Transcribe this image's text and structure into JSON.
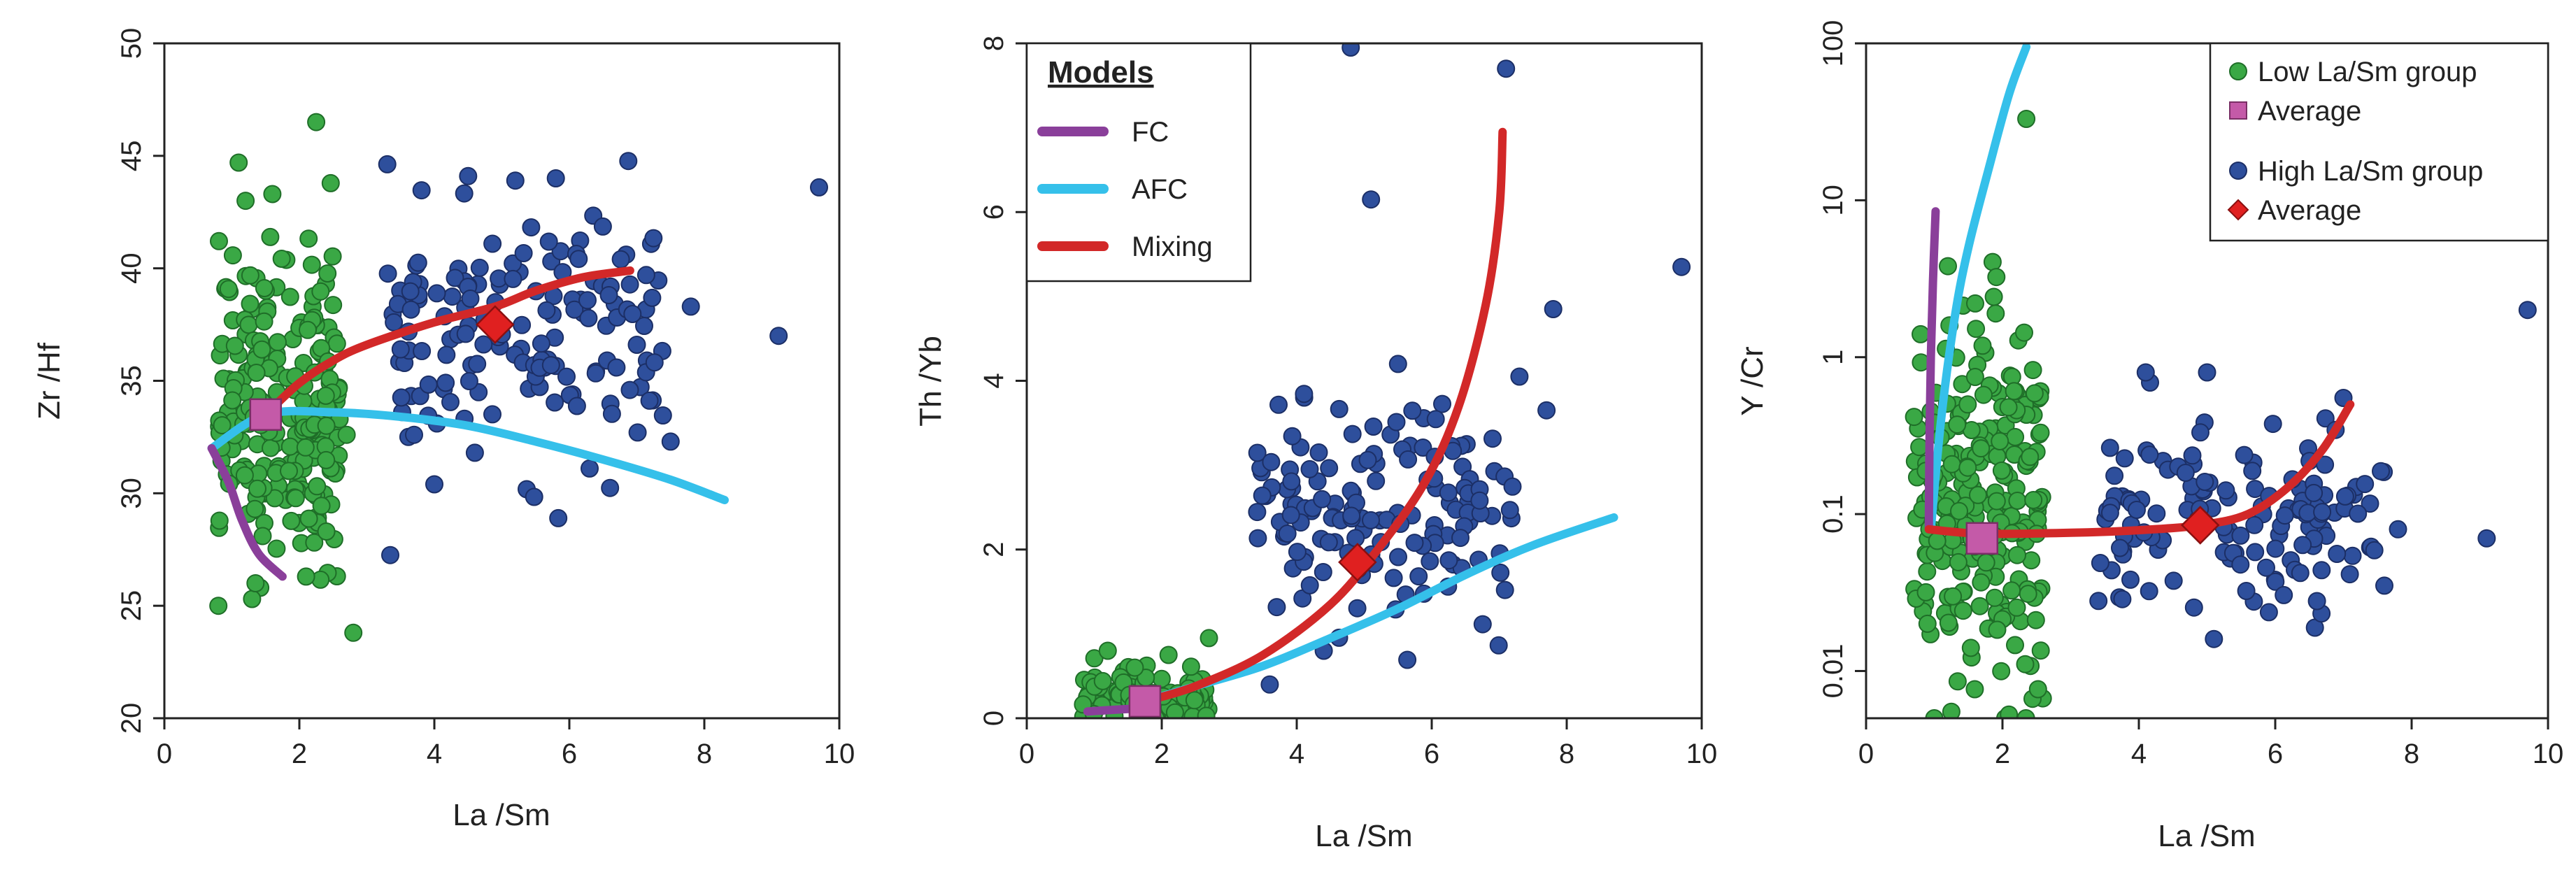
{
  "colors": {
    "low": "#3aa845",
    "low_edge": "#1f6e28",
    "high": "#2e4f9c",
    "high_edge": "#1c2f66",
    "avg_low": "#c45aa8",
    "avg_high": "#e02020",
    "fc": "#8a3f9a",
    "afc": "#35c0ea",
    "mix": "#d22828"
  },
  "chart_data": [
    {
      "type": "scatter",
      "id": "zrhf",
      "xlabel": "La /Sm",
      "ylabel": "Zr /Hf",
      "xlim": [
        0,
        10
      ],
      "ylim": [
        20,
        50
      ],
      "yscale": "linear",
      "xticks": [
        "0",
        "2",
        "4",
        "6",
        "8",
        "10"
      ],
      "xtick_values": [
        0,
        2,
        4,
        6,
        8,
        10
      ],
      "yticks": [
        "20",
        "25",
        "30",
        "35",
        "40",
        "45",
        "50"
      ],
      "ytick_values": [
        20,
        25,
        30,
        35,
        40,
        45,
        50
      ],
      "low_cluster": {
        "x_range": [
          0.8,
          2.6
        ],
        "y_center": 34,
        "y_spread": 3.4,
        "n": 230
      },
      "high_cluster": {
        "x_range": [
          3.3,
          7.5
        ],
        "y_center": 37,
        "y_spread": 2.8,
        "n": 150
      },
      "low_points": [
        [
          1.1,
          44.7
        ],
        [
          1.6,
          43.3
        ],
        [
          2.25,
          46.5
        ],
        [
          0.8,
          25.0
        ],
        [
          1.3,
          25.3
        ],
        [
          1.35,
          26.0
        ],
        [
          2.1,
          26.3
        ],
        [
          2.8,
          23.8
        ],
        [
          2.4,
          33.0
        ],
        [
          2.7,
          32.6
        ],
        [
          2.4,
          28.3
        ]
      ],
      "high_points": [
        [
          9.7,
          43.6
        ],
        [
          9.1,
          37.0
        ],
        [
          7.8,
          38.3
        ],
        [
          7.5,
          32.3
        ],
        [
          6.3,
          31.1
        ],
        [
          4.0,
          30.4
        ],
        [
          4.6,
          31.8
        ],
        [
          5.8,
          44.0
        ],
        [
          5.2,
          43.9
        ],
        [
          4.5,
          44.1
        ],
        [
          3.5,
          36.4
        ],
        [
          3.4,
          37.6
        ],
        [
          7.0,
          36.6
        ],
        [
          3.7,
          32.6
        ]
      ],
      "avg_low": [
        1.5,
        33.5
      ],
      "avg_high": [
        4.9,
        37.5
      ],
      "lines": {
        "fc": [
          [
            0.7,
            32.0
          ],
          [
            0.95,
            30.5
          ],
          [
            1.15,
            28.8
          ],
          [
            1.4,
            27.3
          ],
          [
            1.75,
            26.3
          ]
        ],
        "afc": [
          [
            0.7,
            32.0
          ],
          [
            1.5,
            33.5
          ],
          [
            2.5,
            33.6
          ],
          [
            3.5,
            33.4
          ],
          [
            4.5,
            33.0
          ],
          [
            5.5,
            32.3
          ],
          [
            6.5,
            31.5
          ],
          [
            7.5,
            30.6
          ],
          [
            8.3,
            29.7
          ]
        ],
        "mix": [
          [
            1.5,
            33.5
          ],
          [
            2.0,
            34.9
          ],
          [
            2.5,
            35.9
          ],
          [
            3.0,
            36.6
          ],
          [
            4.0,
            37.6
          ],
          [
            4.9,
            38.3
          ],
          [
            5.5,
            39.0
          ],
          [
            6.2,
            39.6
          ],
          [
            6.9,
            39.9
          ]
        ]
      }
    },
    {
      "type": "scatter",
      "id": "thyb",
      "xlabel": "La /Sm",
      "ylabel": "Th /Yb",
      "xlim": [
        0,
        10
      ],
      "ylim": [
        0,
        8
      ],
      "yscale": "linear",
      "xticks": [
        "0",
        "2",
        "4",
        "6",
        "8",
        "10"
      ],
      "xtick_values": [
        0,
        2,
        4,
        6,
        8,
        10
      ],
      "yticks": [
        "0",
        "2",
        "4",
        "6",
        "8"
      ],
      "ytick_values": [
        0,
        2,
        4,
        6,
        8
      ],
      "low_cluster": {
        "x_range": [
          0.8,
          2.7
        ],
        "y_center": 0.25,
        "y_spread": 0.15,
        "n": 110
      },
      "high_cluster": {
        "x_range": [
          3.4,
          7.2
        ],
        "y_center": 2.4,
        "y_spread": 0.6,
        "n": 150
      },
      "low_points": [
        [
          1.2,
          0.8
        ],
        [
          2.1,
          0.75
        ],
        [
          2.7,
          0.95
        ],
        [
          1.6,
          0.6
        ]
      ],
      "high_points": [
        [
          4.8,
          7.95
        ],
        [
          7.1,
          7.7
        ],
        [
          5.1,
          6.15
        ],
        [
          7.8,
          4.85
        ],
        [
          9.7,
          5.35
        ],
        [
          7.7,
          3.65
        ],
        [
          7.3,
          4.05
        ],
        [
          5.5,
          4.2
        ],
        [
          3.6,
          0.4
        ],
        [
          4.4,
          0.8
        ]
      ],
      "avg_low": [
        1.75,
        0.2
      ],
      "avg_high": [
        4.9,
        1.85
      ],
      "lines": {
        "fc": [
          [
            0.9,
            0.08
          ],
          [
            1.3,
            0.1
          ],
          [
            1.75,
            0.12
          ]
        ],
        "afc": [
          [
            1.75,
            0.2
          ],
          [
            2.5,
            0.38
          ],
          [
            3.5,
            0.62
          ],
          [
            4.5,
            0.95
          ],
          [
            5.5,
            1.3
          ],
          [
            6.5,
            1.7
          ],
          [
            7.5,
            2.05
          ],
          [
            8.7,
            2.38
          ]
        ],
        "mix": [
          [
            1.75,
            0.2
          ],
          [
            2.5,
            0.38
          ],
          [
            3.5,
            0.75
          ],
          [
            4.5,
            1.35
          ],
          [
            5.2,
            2.0
          ],
          [
            5.9,
            2.8
          ],
          [
            6.4,
            3.7
          ],
          [
            6.8,
            4.9
          ],
          [
            7.0,
            6.0
          ],
          [
            7.05,
            6.95
          ]
        ]
      },
      "legend": {
        "title": "Models",
        "items": [
          {
            "label": "FC",
            "key": "fc"
          },
          {
            "label": "AFC",
            "key": "afc"
          },
          {
            "label": "Mixing",
            "key": "mix"
          }
        ]
      }
    },
    {
      "type": "scatter",
      "id": "ycr",
      "xlabel": "La /Sm",
      "ylabel": "Y /Cr",
      "xlim": [
        0,
        10
      ],
      "ylim": [
        0.005,
        100
      ],
      "yscale": "log",
      "xticks": [
        "0",
        "2",
        "4",
        "6",
        "8",
        "10"
      ],
      "xtick_values": [
        0,
        2,
        4,
        6,
        8,
        10
      ],
      "yticks": [
        "0.01",
        "0.1",
        "1",
        "10",
        "100"
      ],
      "ytick_values": [
        0.01,
        0.1,
        1,
        10,
        100
      ],
      "low_cluster": {
        "x_range": [
          0.7,
          2.6
        ],
        "y_center": 0.12,
        "y_spread_log": 0.6,
        "n": 240
      },
      "high_cluster": {
        "x_range": [
          3.4,
          7.6
        ],
        "y_center": 0.09,
        "y_spread_log": 0.28,
        "n": 140
      },
      "low_points": [
        [
          2.35,
          33.0
        ],
        [
          1.2,
          3.8
        ],
        [
          0.8,
          1.4
        ],
        [
          1.6,
          2.2
        ],
        [
          1.9,
          1.9
        ],
        [
          1.0,
          0.005
        ],
        [
          1.25,
          0.0055
        ],
        [
          0.9,
          0.02
        ]
      ],
      "high_points": [
        [
          9.7,
          2.0
        ],
        [
          9.1,
          0.07
        ],
        [
          7.8,
          0.08
        ],
        [
          7.6,
          0.035
        ],
        [
          5.1,
          0.016
        ],
        [
          4.1,
          0.8
        ],
        [
          5.0,
          0.8
        ],
        [
          7.0,
          0.55
        ]
      ],
      "avg_low": [
        1.7,
        0.07
      ],
      "avg_high": [
        4.9,
        0.085
      ],
      "lines": {
        "fc": [
          [
            0.92,
            0.08
          ],
          [
            0.93,
            0.3
          ],
          [
            0.95,
            1.0
          ],
          [
            0.98,
            3.0
          ],
          [
            1.02,
            8.5
          ]
        ],
        "afc": [
          [
            0.95,
            0.08
          ],
          [
            1.1,
            0.4
          ],
          [
            1.3,
            1.8
          ],
          [
            1.5,
            5.0
          ],
          [
            1.8,
            16.0
          ],
          [
            2.1,
            48.0
          ],
          [
            2.35,
            95.0
          ]
        ],
        "mix": [
          [
            0.92,
            0.08
          ],
          [
            1.7,
            0.075
          ],
          [
            3.0,
            0.076
          ],
          [
            4.0,
            0.079
          ],
          [
            4.9,
            0.085
          ],
          [
            5.6,
            0.1
          ],
          [
            6.2,
            0.15
          ],
          [
            6.7,
            0.26
          ],
          [
            7.1,
            0.5
          ]
        ]
      },
      "legend": {
        "items": [
          {
            "label": "Low La/Sm group",
            "key": "low",
            "marker": "circle"
          },
          {
            "label": "Average",
            "key": "avg_low",
            "marker": "square"
          },
          {
            "label": "High La/Sm group",
            "key": "high",
            "marker": "circle"
          },
          {
            "label": "Average",
            "key": "avg_high",
            "marker": "diamond"
          }
        ]
      }
    }
  ]
}
